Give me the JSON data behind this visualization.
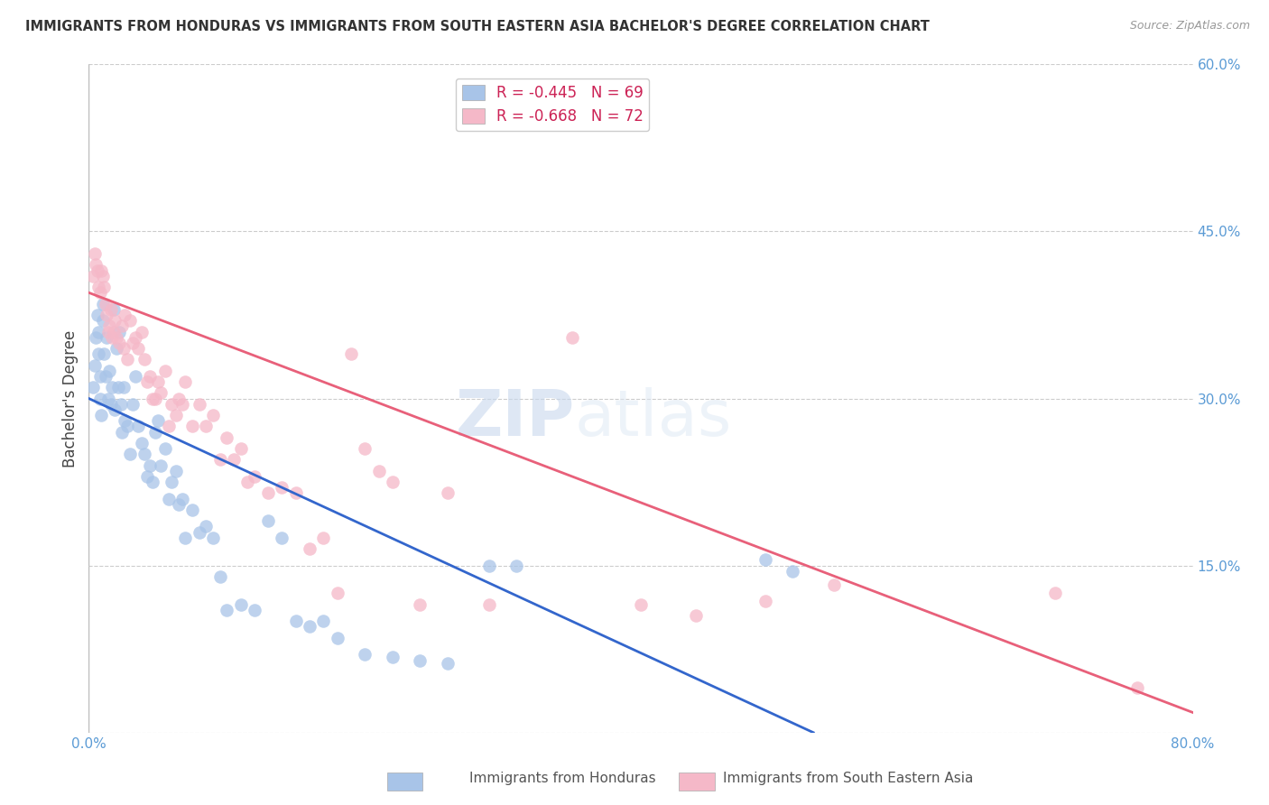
{
  "title": "IMMIGRANTS FROM HONDURAS VS IMMIGRANTS FROM SOUTH EASTERN ASIA BACHELOR'S DEGREE CORRELATION CHART",
  "source": "Source: ZipAtlas.com",
  "ylabel": "Bachelor's Degree",
  "xlim": [
    0.0,
    0.8
  ],
  "ylim": [
    0.0,
    0.6
  ],
  "legend1_r": "-0.445",
  "legend1_n": "69",
  "legend2_r": "-0.668",
  "legend2_n": "72",
  "blue_color": "#a8c4e8",
  "pink_color": "#f5b8c8",
  "blue_line_color": "#3366cc",
  "pink_line_color": "#e8607a",
  "watermark_zip": "ZIP",
  "watermark_atlas": "atlas",
  "blue_scatter_x": [
    0.003,
    0.004,
    0.005,
    0.006,
    0.007,
    0.007,
    0.008,
    0.008,
    0.009,
    0.01,
    0.01,
    0.011,
    0.012,
    0.013,
    0.014,
    0.015,
    0.016,
    0.017,
    0.018,
    0.019,
    0.02,
    0.021,
    0.022,
    0.023,
    0.024,
    0.025,
    0.026,
    0.028,
    0.03,
    0.032,
    0.034,
    0.036,
    0.038,
    0.04,
    0.042,
    0.044,
    0.046,
    0.048,
    0.05,
    0.052,
    0.055,
    0.058,
    0.06,
    0.063,
    0.065,
    0.068,
    0.07,
    0.075,
    0.08,
    0.085,
    0.09,
    0.095,
    0.1,
    0.11,
    0.12,
    0.13,
    0.14,
    0.15,
    0.16,
    0.17,
    0.18,
    0.2,
    0.22,
    0.24,
    0.26,
    0.29,
    0.31,
    0.49,
    0.51
  ],
  "blue_scatter_y": [
    0.31,
    0.33,
    0.355,
    0.375,
    0.34,
    0.36,
    0.32,
    0.3,
    0.285,
    0.385,
    0.37,
    0.34,
    0.32,
    0.355,
    0.3,
    0.325,
    0.295,
    0.31,
    0.38,
    0.29,
    0.345,
    0.31,
    0.36,
    0.295,
    0.27,
    0.31,
    0.28,
    0.275,
    0.25,
    0.295,
    0.32,
    0.275,
    0.26,
    0.25,
    0.23,
    0.24,
    0.225,
    0.27,
    0.28,
    0.24,
    0.255,
    0.21,
    0.225,
    0.235,
    0.205,
    0.21,
    0.175,
    0.2,
    0.18,
    0.185,
    0.175,
    0.14,
    0.11,
    0.115,
    0.11,
    0.19,
    0.175,
    0.1,
    0.095,
    0.1,
    0.085,
    0.07,
    0.068,
    0.065,
    0.062,
    0.15,
    0.15,
    0.155,
    0.145
  ],
  "pink_scatter_x": [
    0.003,
    0.004,
    0.005,
    0.006,
    0.007,
    0.008,
    0.009,
    0.01,
    0.011,
    0.012,
    0.013,
    0.014,
    0.015,
    0.016,
    0.017,
    0.018,
    0.019,
    0.02,
    0.022,
    0.024,
    0.025,
    0.026,
    0.028,
    0.03,
    0.032,
    0.034,
    0.036,
    0.038,
    0.04,
    0.042,
    0.044,
    0.046,
    0.048,
    0.05,
    0.052,
    0.055,
    0.058,
    0.06,
    0.063,
    0.065,
    0.068,
    0.07,
    0.075,
    0.08,
    0.085,
    0.09,
    0.095,
    0.1,
    0.105,
    0.11,
    0.115,
    0.12,
    0.13,
    0.14,
    0.15,
    0.16,
    0.17,
    0.18,
    0.19,
    0.2,
    0.21,
    0.22,
    0.24,
    0.26,
    0.29,
    0.35,
    0.4,
    0.44,
    0.49,
    0.54,
    0.7,
    0.76
  ],
  "pink_scatter_y": [
    0.41,
    0.43,
    0.42,
    0.415,
    0.4,
    0.395,
    0.415,
    0.41,
    0.4,
    0.385,
    0.375,
    0.36,
    0.365,
    0.38,
    0.355,
    0.36,
    0.37,
    0.355,
    0.35,
    0.365,
    0.345,
    0.375,
    0.335,
    0.37,
    0.35,
    0.355,
    0.345,
    0.36,
    0.335,
    0.315,
    0.32,
    0.3,
    0.3,
    0.315,
    0.305,
    0.325,
    0.275,
    0.295,
    0.285,
    0.3,
    0.295,
    0.315,
    0.275,
    0.295,
    0.275,
    0.285,
    0.245,
    0.265,
    0.245,
    0.255,
    0.225,
    0.23,
    0.215,
    0.22,
    0.215,
    0.165,
    0.175,
    0.125,
    0.34,
    0.255,
    0.235,
    0.225,
    0.115,
    0.215,
    0.115,
    0.355,
    0.115,
    0.105,
    0.118,
    0.133,
    0.125,
    0.04
  ],
  "blue_line_x": [
    0.0,
    0.525
  ],
  "blue_line_y": [
    0.3,
    0.0
  ],
  "pink_line_x": [
    0.0,
    0.8
  ],
  "pink_line_y": [
    0.395,
    0.018
  ]
}
